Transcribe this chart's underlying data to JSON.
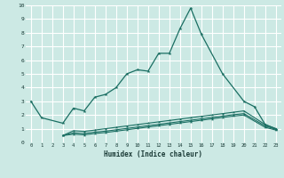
{
  "xlabel": "Humidex (Indice chaleur)",
  "background_color": "#cce9e4",
  "grid_color": "#ffffff",
  "line_color": "#1a6e62",
  "xlim": [
    -0.5,
    23.5
  ],
  "ylim": [
    0,
    10
  ],
  "xticks": [
    0,
    1,
    2,
    3,
    4,
    5,
    6,
    7,
    8,
    9,
    10,
    11,
    12,
    13,
    14,
    15,
    16,
    17,
    18,
    19,
    20,
    21,
    22,
    23
  ],
  "yticks": [
    0,
    1,
    2,
    3,
    4,
    5,
    6,
    7,
    8,
    9,
    10
  ],
  "series": [
    {
      "x": [
        0,
        1,
        3,
        4,
        5,
        6,
        7,
        8,
        9,
        10,
        11,
        12,
        13,
        14,
        15,
        16,
        18,
        20,
        21,
        22,
        23
      ],
      "y": [
        3.0,
        1.8,
        1.4,
        2.5,
        2.3,
        3.3,
        3.5,
        4.0,
        5.0,
        5.3,
        5.2,
        6.5,
        6.5,
        8.3,
        9.8,
        7.9,
        5.0,
        3.0,
        2.6,
        1.3,
        1.0
      ]
    },
    {
      "x": [
        3,
        4,
        5,
        6,
        7,
        8,
        9,
        10,
        11,
        12,
        13,
        14,
        15,
        16,
        17,
        18,
        19,
        20,
        22,
        23
      ],
      "y": [
        0.5,
        0.85,
        0.8,
        0.9,
        1.0,
        1.1,
        1.2,
        1.3,
        1.4,
        1.5,
        1.6,
        1.7,
        1.8,
        1.9,
        2.0,
        2.1,
        2.2,
        2.3,
        1.3,
        1.0
      ]
    },
    {
      "x": [
        3,
        4,
        5,
        6,
        7,
        8,
        9,
        10,
        11,
        12,
        13,
        14,
        15,
        16,
        17,
        18,
        19,
        20,
        22,
        23
      ],
      "y": [
        0.5,
        0.7,
        0.65,
        0.75,
        0.82,
        0.92,
        1.02,
        1.12,
        1.22,
        1.32,
        1.42,
        1.52,
        1.62,
        1.72,
        1.82,
        1.92,
        2.02,
        2.1,
        1.2,
        0.95
      ]
    },
    {
      "x": [
        3,
        4,
        5,
        6,
        7,
        8,
        9,
        10,
        11,
        12,
        13,
        14,
        15,
        16,
        17,
        18,
        19,
        20,
        22,
        23
      ],
      "y": [
        0.5,
        0.6,
        0.55,
        0.65,
        0.72,
        0.82,
        0.92,
        1.02,
        1.12,
        1.22,
        1.32,
        1.42,
        1.52,
        1.62,
        1.72,
        1.82,
        1.92,
        2.0,
        1.1,
        0.9
      ]
    }
  ]
}
